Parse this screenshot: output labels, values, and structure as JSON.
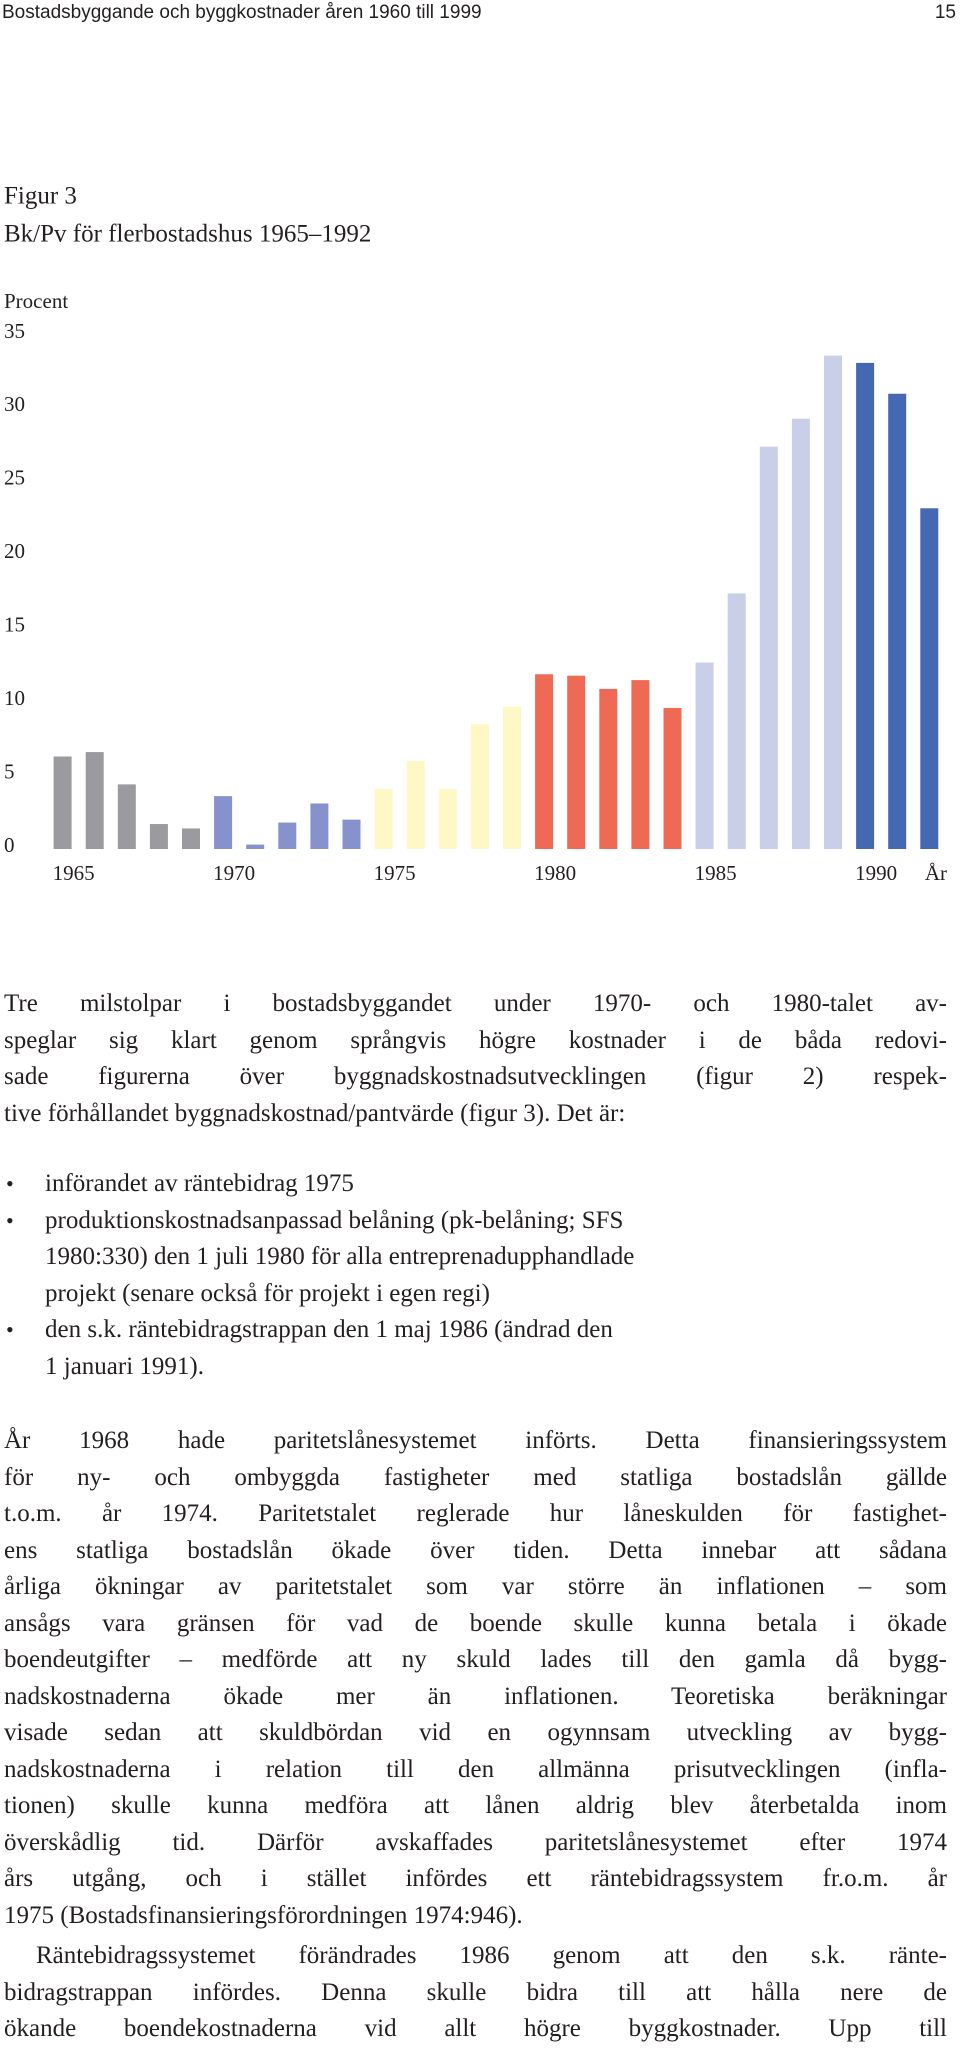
{
  "header": {
    "title": "Bostadsbyggande och byggkostnader åren 1960 till 1999",
    "page_number": "15"
  },
  "chart_data": {
    "type": "bar",
    "title": "Figur 3",
    "subtitle": "Bk/Pv för flerbostadshus 1965–1992",
    "y_label": "Procent",
    "x_label": "År",
    "categories": [
      "1965",
      null,
      null,
      null,
      null,
      "1970",
      null,
      null,
      null,
      null,
      "1975",
      null,
      null,
      null,
      null,
      "1980",
      null,
      null,
      null,
      null,
      "1985",
      null,
      null,
      null,
      null,
      "1990",
      null,
      null
    ],
    "values": [
      6.3,
      6.6,
      4.4,
      1.7,
      1.4,
      3.6,
      0.3,
      1.8,
      3.1,
      2.0,
      4.1,
      6.0,
      4.1,
      8.5,
      9.7,
      11.9,
      11.8,
      10.9,
      11.5,
      9.6,
      12.7,
      17.4,
      27.4,
      29.3,
      33.6,
      33.1,
      31.0,
      23.2
    ],
    "colors": [
      "#9b9b9f",
      "#9b9b9f",
      "#9b9b9f",
      "#9b9b9f",
      "#9b9b9f",
      "#8592cc",
      "#8592cc",
      "#8592cc",
      "#8592cc",
      "#8592cc",
      "#fdf8c6",
      "#fdf8c6",
      "#fdf8c6",
      "#fdf8c6",
      "#fdf8c6",
      "#ef6a55",
      "#ef6a55",
      "#ef6a55",
      "#ef6a55",
      "#ef6a55",
      "#c9cfe9",
      "#c9cfe9",
      "#c9cfe9",
      "#c9cfe9",
      "#c9cfe9",
      "#4667b1",
      "#4667b1",
      "#4667b1"
    ],
    "ylim": [
      0,
      35
    ],
    "yticks": [
      0,
      5,
      10,
      15,
      20,
      25,
      30,
      35
    ]
  },
  "body": {
    "intro": [
      "Tre milstolpar i bostadsbyggandet under 1970- och 1980-talet av-",
      "speglar sig klart genom språngvis högre kostnader i de båda redovi-",
      "sade figurerna över byggnadskostnadsutvecklingen (figur 2) respek-",
      "tive förhållandet byggnadskostnad/pantvärde (figur 3). Det är:"
    ],
    "bullets": [
      [
        "införandet av räntebidrag 1975"
      ],
      [
        "produktionskostnadsanpassad belåning (pk-belåning; SFS",
        "1980:330) den 1 juli 1980 för alla entreprenadupphandlade",
        "projekt (senare också för projekt i egen regi)"
      ],
      [
        "den s.k. räntebidragstrappan den 1 maj 1986 (ändrad den",
        "1 januari 1991)."
      ]
    ],
    "paragraphs": [
      [
        "År 1968 hade paritetslånesystemet införts. Detta finansieringssystem",
        "för ny- och ombyggda fastigheter med statliga bostadslån gällde",
        "t.o.m. år 1974. Paritetstalet reglerade hur låneskulden för fastighet-",
        "ens statliga bostadslån ökade över tiden. Detta innebar att sådana",
        "årliga ökningar av paritetstalet som var större än inflationen – som",
        "ansågs vara gränsen för vad de boende skulle kunna betala i ökade",
        "boendeutgifter – medförde att ny skuld lades till den gamla då bygg-",
        "nadskostnaderna ökade mer än inflationen. Teoretiska beräkningar",
        "visade sedan att skuldbördan vid en ogynnsam utveckling av bygg-",
        "nadskostnaderna i relation till den allmänna prisutvecklingen (infla-",
        "tionen) skulle kunna medföra att lånen aldrig blev återbetalda inom",
        "överskådlig tid. Därför avskaffades paritetslånesystemet efter 1974",
        "års utgång, och i stället infördes ett räntebidragssystem fr.o.m. år",
        "1975 (Bostadsfinansieringsförordningen 1974:946)."
      ],
      [
        "Räntebidragssystemet förändrades 1986 genom att den s.k. ränte-",
        "bidragstrappan infördes. Denna skulle bidra till att hålla nere de",
        "ökande boendekostnaderna vid allt högre byggkostnader. Upp till"
      ]
    ]
  }
}
